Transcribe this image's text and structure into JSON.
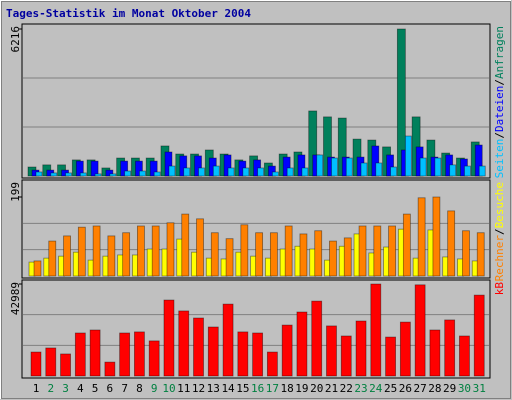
{
  "title": "Tages-Statistik im Monat Oktober 2004",
  "legend_separator": "/",
  "chart_data": [
    {
      "type": "bar",
      "ylim": [
        0,
        6216
      ],
      "yticks": [
        6216
      ],
      "series": [
        {
          "name": "Anfragen",
          "color": "#00805c",
          "values": [
            380,
            470,
            470,
            680,
            680,
            340,
            760,
            760,
            760,
            1270,
            930,
            930,
            1100,
            930,
            680,
            850,
            550,
            930,
            1015,
            2750,
            2500,
            2450,
            1560,
            1520,
            1230,
            6216,
            2500,
            1520,
            970,
            760,
            1440
          ]
        },
        {
          "name": "Dateien",
          "color": "#0000ff",
          "values": [
            250,
            250,
            250,
            630,
            630,
            250,
            630,
            630,
            630,
            1015,
            850,
            850,
            760,
            890,
            630,
            680,
            420,
            800,
            890,
            890,
            800,
            800,
            800,
            1270,
            890,
            1100,
            1230,
            800,
            890,
            720,
            1310
          ]
        },
        {
          "name": "Seiten",
          "color": "#00c0ff",
          "values": [
            170,
            130,
            130,
            130,
            90,
            90,
            210,
            210,
            170,
            420,
            340,
            340,
            420,
            340,
            340,
            340,
            170,
            340,
            340,
            890,
            760,
            760,
            550,
            550,
            380,
            1690,
            760,
            760,
            470,
            420,
            420
          ]
        }
      ]
    },
    {
      "type": "bar",
      "ylim": [
        0,
        199
      ],
      "yticks": [
        199
      ],
      "series": [
        {
          "name": "Besuche",
          "color": "#ffff00",
          "values": [
            35,
            45,
            50,
            60,
            40,
            50,
            53,
            53,
            68,
            68,
            93,
            60,
            45,
            43,
            60,
            50,
            45,
            68,
            75,
            68,
            40,
            75,
            106,
            58,
            73,
            118,
            45,
            116,
            48,
            43,
            38
          ]
        },
        {
          "name": "Rechner",
          "color": "#ff8000",
          "values": [
            38,
            88,
            101,
            123,
            126,
            101,
            109,
            126,
            126,
            134,
            156,
            144,
            109,
            94,
            129,
            109,
            109,
            126,
            106,
            114,
            88,
            96,
            126,
            126,
            126,
            156,
            197,
            199,
            164,
            114,
            109
          ]
        }
      ]
    },
    {
      "type": "bar",
      "ylim": [
        0,
        42989
      ],
      "yticks": [
        42989
      ],
      "categories": [
        "1",
        "2",
        "3",
        "4",
        "5",
        "6",
        "7",
        "8",
        "9",
        "10",
        "11",
        "12",
        "13",
        "14",
        "15",
        "16",
        "17",
        "18",
        "19",
        "20",
        "21",
        "22",
        "23",
        "24",
        "25",
        "26",
        "27",
        "28",
        "29",
        "30",
        "31"
      ],
      "category_colors": [
        "#000000",
        "#008040",
        "#008040",
        "#000000",
        "#000000",
        "#000000",
        "#000000",
        "#000000",
        "#008040",
        "#008040",
        "#000000",
        "#000000",
        "#000000",
        "#000000",
        "#000000",
        "#008040",
        "#008040",
        "#000000",
        "#000000",
        "#000000",
        "#000000",
        "#000000",
        "#008040",
        "#008040",
        "#000000",
        "#000000",
        "#000000",
        "#000000",
        "#000000",
        "#008040",
        "#008040"
      ],
      "series": [
        {
          "name": "kB",
          "color": "#ff0000",
          "values": [
            11200,
            13100,
            10300,
            20100,
            21500,
            6500,
            20100,
            20600,
            16400,
            35500,
            30400,
            27100,
            22900,
            33600,
            20600,
            20100,
            11200,
            23800,
            29900,
            35000,
            23400,
            18700,
            25700,
            42989,
            18200,
            25200,
            42600,
            21500,
            26200,
            18700,
            37800
          ]
        }
      ]
    }
  ]
}
